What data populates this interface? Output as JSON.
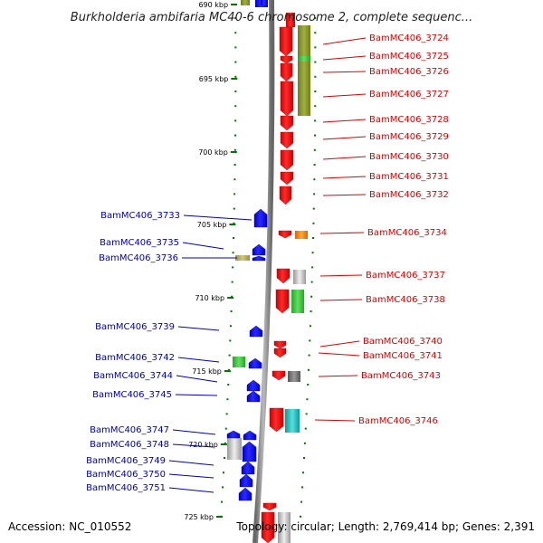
{
  "title": "Burkholderia ambifaria MC40-6 chromosome 2, complete sequenc...",
  "footer": {
    "accession": "Accession: NC_010552",
    "info": "Topology: circular; Length: 2,769,414 bp; Genes: 2,391"
  },
  "colors": {
    "forward_label": "#dd0000",
    "reverse_label": "#0000bb",
    "forward_gene": "#ff0000",
    "reverse_gene": "#0000ff",
    "tick": "#007700",
    "backbone": "#8a8a8a"
  },
  "scale_ticks": [
    "690 kbp",
    "695 kbp",
    "700 kbp",
    "705 kbp",
    "710 kbp",
    "715 kbp",
    "720 kbp",
    "725 kbp"
  ],
  "forward_labels": [
    "BamMC406_3724",
    "BamMC406_3725",
    "BamMC406_3726",
    "BamMC406_3727",
    "BamMC406_3728",
    "BamMC406_3729",
    "BamMC406_3730",
    "BamMC406_3731",
    "BamMC406_3732",
    "BamMC406_3734",
    "BamMC406_3737",
    "BamMC406_3738",
    "BamMC406_3740",
    "BamMC406_3741",
    "BamMC406_3743",
    "BamMC406_3746"
  ],
  "reverse_labels": [
    "BamMC406_3733",
    "BamMC406_3735",
    "BamMC406_3736",
    "BamMC406_3739",
    "BamMC406_3742",
    "BamMC406_3744",
    "BamMC406_3745",
    "BamMC406_3747",
    "BamMC406_3748",
    "BamMC406_3749",
    "BamMC406_3750",
    "BamMC406_3751"
  ],
  "icons": {
    "forward_gene": "gene-arrow-down-icon",
    "reverse_gene": "gene-arrow-up-icon"
  }
}
